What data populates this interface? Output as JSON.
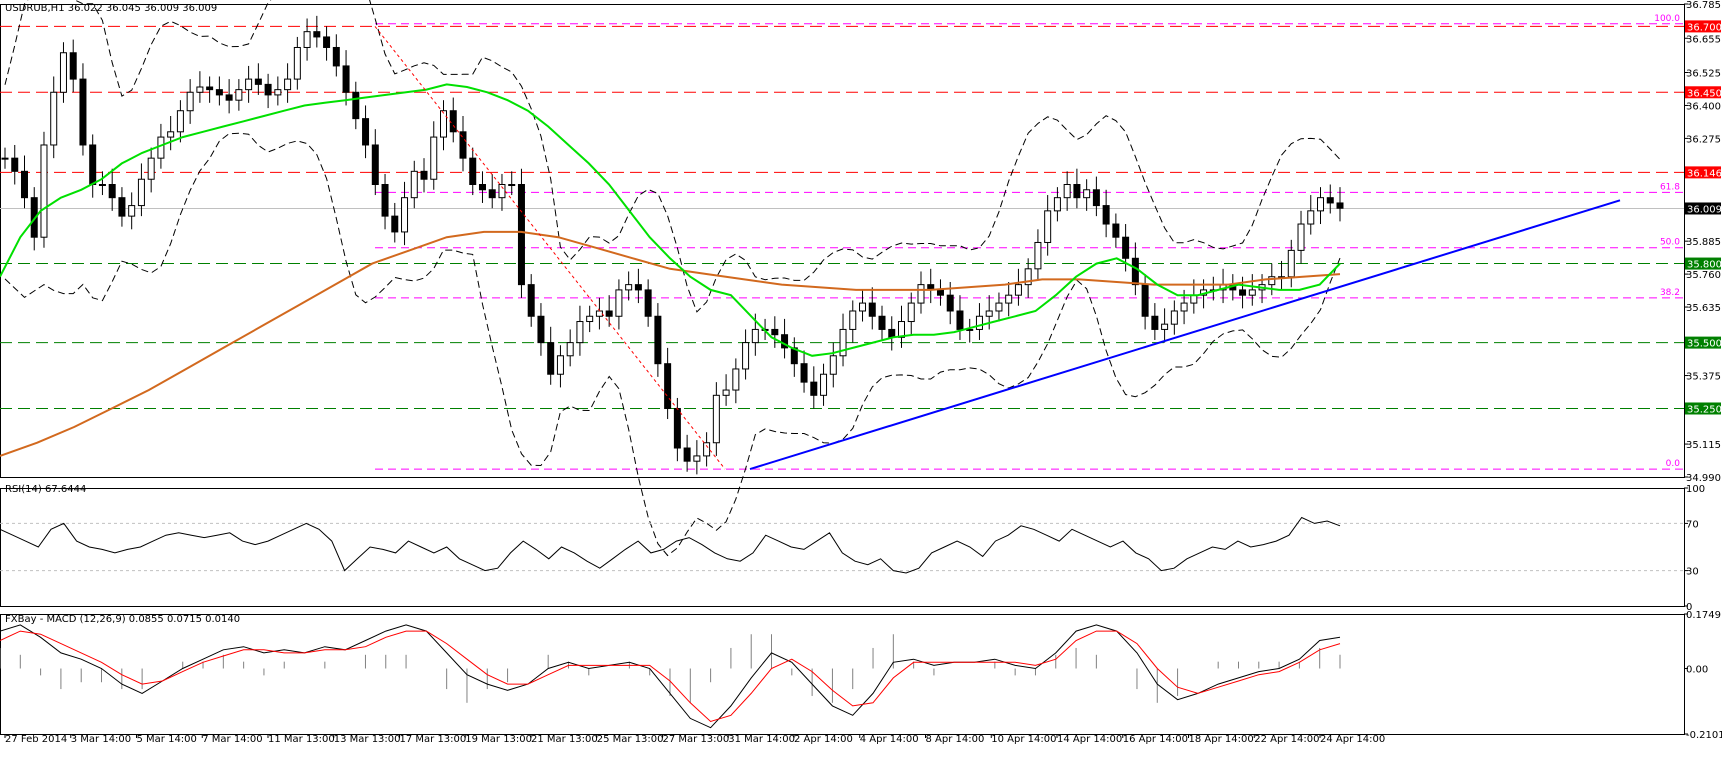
{
  "window": {
    "symbol_title": "USDRUB,H1  36.022 36.045 36.009 36.009"
  },
  "colors": {
    "background": "#ffffff",
    "candle_bull": "#000000",
    "candle_bear": "#000000",
    "ma_fast": "#00e000",
    "ma_slow": "#d2691e",
    "bollinger": "#000000",
    "trendline": "#0000ff",
    "fib": "#ff00ff",
    "res_line": "#ff0000",
    "sup_line": "#008000",
    "macd_main": "#000000",
    "macd_signal": "#ff0000",
    "rsi": "#000000"
  },
  "chart_data": [
    {
      "type": "line",
      "panel": "price",
      "title": "USDRUB,H1  36.022 36.045 36.009 36.009",
      "ylim": [
        34.99,
        36.785
      ],
      "y_ticks": [
        36.785,
        36.655,
        36.525,
        36.4,
        36.275,
        36.145,
        36.015,
        35.885,
        35.76,
        35.635,
        35.505,
        35.375,
        35.25,
        35.115,
        34.99
      ],
      "x_labels": [
        "27 Feb 2014",
        "3 Mar 14:00",
        "5 Mar 14:00",
        "7 Mar 14:00",
        "11 Mar 13:00",
        "13 Mar 13:00",
        "17 Mar 13:00",
        "19 Mar 13:00",
        "21 Mar 13:00",
        "25 Mar 13:00",
        "27 Mar 13:00",
        "31 Mar 14:00",
        "2 Apr 14:00",
        "4 Apr 14:00",
        "8 Apr 14:00",
        "10 Apr 14:00",
        "14 Apr 14:00",
        "16 Apr 14:00",
        "18 Apr 14:00",
        "22 Apr 14:00",
        "24 Apr 14:00"
      ],
      "horizontal_levels": [
        {
          "value": 36.7,
          "label": "36.700",
          "kind": "resistance"
        },
        {
          "value": 36.45,
          "label": "36.450",
          "kind": "resistance"
        },
        {
          "value": 36.146,
          "label": "36.146",
          "kind": "resistance"
        },
        {
          "value": 35.8,
          "label": "35.800",
          "kind": "support"
        },
        {
          "value": 35.5,
          "label": "35.500",
          "kind": "support"
        },
        {
          "value": 35.25,
          "label": "35.250",
          "kind": "support"
        }
      ],
      "current_price": {
        "value": 36.009,
        "label": "36.009"
      },
      "fibonacci": [
        {
          "value": 36.71,
          "label": "100.0"
        },
        {
          "value": 36.07,
          "label": "61.8"
        },
        {
          "value": 35.86,
          "label": "50.0"
        },
        {
          "value": 35.67,
          "label": "38.2"
        },
        {
          "value": 35.02,
          "label": "0.0"
        }
      ],
      "series": [
        {
          "name": "",
          "kind": "close",
          "values": [
            36.2,
            36.15,
            36.05,
            35.9,
            36.25,
            36.45,
            36.6,
            36.5,
            36.25,
            36.1,
            36.1,
            36.05,
            35.98,
            36.02,
            36.12,
            36.2,
            36.28,
            36.3,
            36.38,
            36.45,
            36.47,
            36.46,
            36.44,
            36.42,
            36.46,
            36.5,
            36.48,
            36.44,
            36.46,
            36.5,
            36.62,
            36.68,
            36.66,
            36.62,
            36.55,
            36.45,
            36.35,
            36.25,
            36.1,
            35.98,
            35.92,
            36.05,
            36.15,
            36.12,
            36.28,
            36.38,
            36.3,
            36.2,
            36.1,
            36.08,
            36.05,
            36.1,
            36.1,
            35.72,
            35.6,
            35.5,
            35.38,
            35.45,
            35.5,
            35.58,
            35.6,
            35.62,
            35.6,
            35.7,
            35.72,
            35.7,
            35.6,
            35.42,
            35.25,
            35.1,
            35.05,
            35.07,
            35.12,
            35.3,
            35.32,
            35.4,
            35.5,
            35.55,
            35.55,
            35.53,
            35.48,
            35.42,
            35.35,
            35.3,
            35.38,
            35.45,
            35.55,
            35.62,
            35.65,
            35.6,
            35.55,
            35.52,
            35.58,
            35.65,
            35.72,
            35.7,
            35.68,
            35.62,
            35.55,
            35.55,
            35.6,
            35.62,
            35.65,
            35.68,
            35.72,
            35.78,
            35.88,
            36.0,
            36.05,
            36.1,
            36.05,
            36.08,
            36.02,
            35.95,
            35.9,
            35.82,
            35.72,
            35.6,
            35.55,
            35.57,
            35.62,
            35.65,
            35.68,
            35.7,
            35.7,
            35.72,
            35.7,
            35.68,
            35.7,
            35.72,
            35.75,
            35.75,
            35.85,
            35.95,
            36.0,
            36.05,
            36.03,
            36.01
          ]
        },
        {
          "name": "",
          "kind": "ma_fast",
          "values": [
            35.75,
            35.9,
            36.0,
            36.05,
            36.08,
            36.12,
            36.18,
            36.22,
            36.25,
            36.28,
            36.3,
            36.32,
            36.34,
            36.36,
            36.38,
            36.4,
            36.41,
            36.42,
            36.43,
            36.44,
            36.45,
            36.46,
            36.48,
            36.47,
            36.45,
            36.42,
            36.38,
            36.32,
            36.25,
            36.18,
            36.1,
            36.0,
            35.9,
            35.82,
            35.75,
            35.7,
            35.68,
            35.6,
            35.52,
            35.48,
            35.45,
            35.46,
            35.48,
            35.5,
            35.52,
            35.53,
            35.53,
            35.54,
            35.56,
            35.58,
            35.6,
            35.62,
            35.68,
            35.75,
            35.8,
            35.82,
            35.78,
            35.72,
            35.68,
            35.68,
            35.7,
            35.72,
            35.71,
            35.7,
            35.7,
            35.72,
            35.8
          ]
        },
        {
          "name": "",
          "kind": "ma_slow",
          "values": [
            35.07,
            35.12,
            35.18,
            35.25,
            35.32,
            35.4,
            35.48,
            35.56,
            35.64,
            35.72,
            35.8,
            35.85,
            35.9,
            35.92,
            35.92,
            35.9,
            35.86,
            35.82,
            35.78,
            35.76,
            35.74,
            35.72,
            35.71,
            35.7,
            35.7,
            35.7,
            35.71,
            35.72,
            35.74,
            35.74,
            35.73,
            35.72,
            35.72,
            35.72,
            35.74,
            35.75,
            35.76
          ]
        }
      ],
      "trendline": {
        "from": {
          "date": "31 Mar 14:00",
          "value": 35.02
        },
        "to": {
          "date": "25 Apr",
          "value": 36.04
        }
      }
    },
    {
      "type": "line",
      "panel": "rsi",
      "title": "RSI(14) 67.6444",
      "ylim": [
        0,
        100
      ],
      "y_ticks": [
        100,
        70,
        30,
        0
      ],
      "levels": [
        70,
        30
      ],
      "series": [
        {
          "name": "",
          "values": [
            65,
            60,
            55,
            50,
            65,
            70,
            55,
            50,
            48,
            45,
            48,
            50,
            55,
            60,
            62,
            60,
            58,
            60,
            62,
            55,
            52,
            55,
            60,
            65,
            70,
            65,
            55,
            30,
            40,
            50,
            48,
            45,
            55,
            50,
            45,
            50,
            40,
            35,
            30,
            32,
            45,
            55,
            48,
            40,
            50,
            45,
            38,
            32,
            40,
            48,
            55,
            45,
            48,
            55,
            58,
            52,
            45,
            40,
            38,
            45,
            60,
            55,
            50,
            48,
            55,
            62,
            45,
            38,
            35,
            40,
            30,
            28,
            32,
            45,
            50,
            55,
            50,
            42,
            55,
            60,
            68,
            65,
            60,
            55,
            65,
            60,
            55,
            50,
            55,
            45,
            40,
            30,
            32,
            40,
            45,
            50,
            48,
            55,
            50,
            52,
            55,
            60,
            75,
            70,
            72,
            68
          ]
        }
      ]
    },
    {
      "type": "line",
      "panel": "macd",
      "title": "FXBay - MACD (12,26,9) 0.0855 0.0715 0.0140",
      "ylim": [
        -0.2101,
        0.1749
      ],
      "y_ticks": [
        0.1749,
        0.0,
        -0.2101
      ],
      "y_tick_labels": [
        "0.1749",
        "0.00",
        "-0.2101"
      ],
      "series": [
        {
          "name": "",
          "kind": "main",
          "values": [
            0.12,
            0.14,
            0.1,
            0.05,
            0.03,
            0.0,
            -0.05,
            -0.08,
            -0.04,
            0.0,
            0.03,
            0.06,
            0.07,
            0.05,
            0.06,
            0.05,
            0.07,
            0.06,
            0.09,
            0.12,
            0.14,
            0.12,
            0.05,
            -0.02,
            -0.05,
            -0.07,
            -0.05,
            0.0,
            0.02,
            0.0,
            0.01,
            0.02,
            0.0,
            -0.08,
            -0.16,
            -0.19,
            -0.12,
            -0.03,
            0.05,
            0.02,
            -0.05,
            -0.12,
            -0.15,
            -0.08,
            0.02,
            0.03,
            0.01,
            0.02,
            0.02,
            0.03,
            0.01,
            0.0,
            0.05,
            0.12,
            0.14,
            0.12,
            0.05,
            -0.05,
            -0.1,
            -0.08,
            -0.05,
            -0.03,
            -0.01,
            0.0,
            0.03,
            0.09,
            0.1
          ]
        },
        {
          "name": "",
          "kind": "signal",
          "values": [
            0.09,
            0.12,
            0.11,
            0.08,
            0.05,
            0.02,
            -0.02,
            -0.05,
            -0.04,
            -0.01,
            0.02,
            0.04,
            0.06,
            0.06,
            0.05,
            0.05,
            0.06,
            0.06,
            0.07,
            0.1,
            0.12,
            0.12,
            0.08,
            0.03,
            -0.02,
            -0.05,
            -0.05,
            -0.02,
            0.01,
            0.01,
            0.01,
            0.01,
            0.01,
            -0.04,
            -0.11,
            -0.17,
            -0.15,
            -0.08,
            0.0,
            0.03,
            -0.01,
            -0.07,
            -0.12,
            -0.11,
            -0.03,
            0.02,
            0.02,
            0.02,
            0.02,
            0.02,
            0.02,
            0.01,
            0.03,
            0.09,
            0.12,
            0.12,
            0.08,
            0.0,
            -0.06,
            -0.08,
            -0.06,
            -0.04,
            -0.02,
            -0.01,
            0.02,
            0.06,
            0.08
          ]
        }
      ]
    }
  ]
}
